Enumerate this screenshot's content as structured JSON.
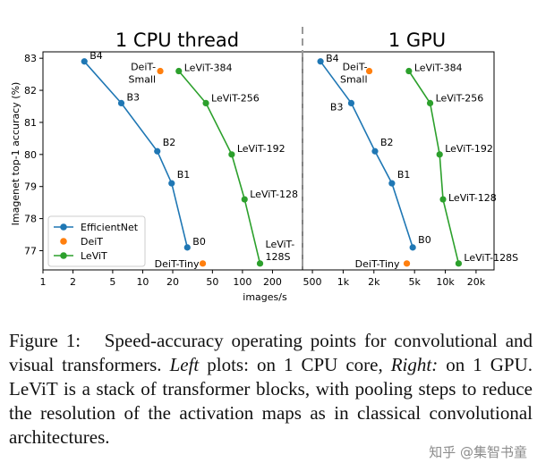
{
  "chart_data": [
    {
      "type": "line",
      "title": "1 CPU thread",
      "ylabel": "Imagenet top-1 accuracy (%)",
      "xscale": "log",
      "xlim": [
        1,
        400
      ],
      "ylim": [
        76.4,
        83.2
      ],
      "xticks": [
        1,
        2,
        5,
        10,
        20,
        50,
        100,
        200
      ],
      "xtick_labels": [
        "1",
        "2",
        "5",
        "10",
        "20",
        "50",
        "100",
        "200"
      ],
      "yticks": [
        77,
        78,
        79,
        80,
        81,
        82,
        83
      ],
      "legend": "bottom-left",
      "series": [
        {
          "name": "EfficientNet",
          "color": "#1f77b4",
          "points": [
            {
              "x": 2.6,
              "y": 82.9,
              "label": "B4"
            },
            {
              "x": 6.1,
              "y": 81.6,
              "label": "B3"
            },
            {
              "x": 14.0,
              "y": 80.1,
              "label": "B2"
            },
            {
              "x": 19.5,
              "y": 79.1,
              "label": "B1"
            },
            {
              "x": 28.0,
              "y": 77.1,
              "label": "B0"
            }
          ]
        },
        {
          "name": "DeiT",
          "color": "#ff7f0e",
          "points": [
            {
              "x": 15.0,
              "y": 82.6,
              "label": "DeiT-\nSmall"
            },
            {
              "x": 40.0,
              "y": 76.6,
              "label": "DeiT-Tiny"
            }
          ]
        },
        {
          "name": "LeViT",
          "color": "#2ca02c",
          "points": [
            {
              "x": 23.0,
              "y": 82.6,
              "label": "LeViT-384"
            },
            {
              "x": 43.0,
              "y": 81.6,
              "label": "LeViT-256"
            },
            {
              "x": 78.0,
              "y": 80.0,
              "label": "LeViT-192"
            },
            {
              "x": 105.0,
              "y": 78.6,
              "label": "LeViT-128"
            },
            {
              "x": 150.0,
              "y": 76.6,
              "label": "LeViT-\n128S"
            }
          ]
        }
      ]
    },
    {
      "type": "line",
      "title": "1 GPU",
      "xscale": "log",
      "xlim": [
        400,
        30000
      ],
      "ylim": [
        76.4,
        83.2
      ],
      "xticks": [
        500,
        1000,
        2000,
        5000,
        10000,
        20000
      ],
      "xtick_labels": [
        "500",
        "1k",
        "2k",
        "5k",
        "10k",
        "20k"
      ],
      "series": [
        {
          "name": "EfficientNet",
          "color": "#1f77b4",
          "points": [
            {
              "x": 600,
              "y": 82.9,
              "label": "B4"
            },
            {
              "x": 1200,
              "y": 81.6,
              "label": "B3"
            },
            {
              "x": 2050,
              "y": 80.1,
              "label": "B2"
            },
            {
              "x": 3000,
              "y": 79.1,
              "label": "B1"
            },
            {
              "x": 4800,
              "y": 77.1,
              "label": "B0"
            }
          ]
        },
        {
          "name": "DeiT",
          "color": "#ff7f0e",
          "points": [
            {
              "x": 1800,
              "y": 82.6,
              "label": "DeiT-\nSmall"
            },
            {
              "x": 4200,
              "y": 76.6,
              "label": "DeiT-Tiny"
            }
          ]
        },
        {
          "name": "LeViT",
          "color": "#2ca02c",
          "points": [
            {
              "x": 4400,
              "y": 82.6,
              "label": "LeViT-384"
            },
            {
              "x": 7100,
              "y": 81.6,
              "label": "LeViT-256"
            },
            {
              "x": 8800,
              "y": 80.0,
              "label": "LeViT-192"
            },
            {
              "x": 9500,
              "y": 78.6,
              "label": "LeViT-128"
            },
            {
              "x": 13500,
              "y": 76.6,
              "label": "LeViT-128S"
            }
          ]
        }
      ]
    }
  ],
  "xlabel": "images/s",
  "caption": {
    "lead": "Figure 1:",
    "part1": "Speed-accuracy operating points for convolutional and visual transformers.",
    "left_word": "Left",
    "part2": "plots: on 1 CPU core,",
    "right_word": "Right:",
    "part3": "on 1 GPU. LeViT is a stack of transformer blocks, with pooling steps to reduce the resolution of the activation maps as in classical convolutional architectures."
  },
  "watermark": "知乎 @集智书童"
}
